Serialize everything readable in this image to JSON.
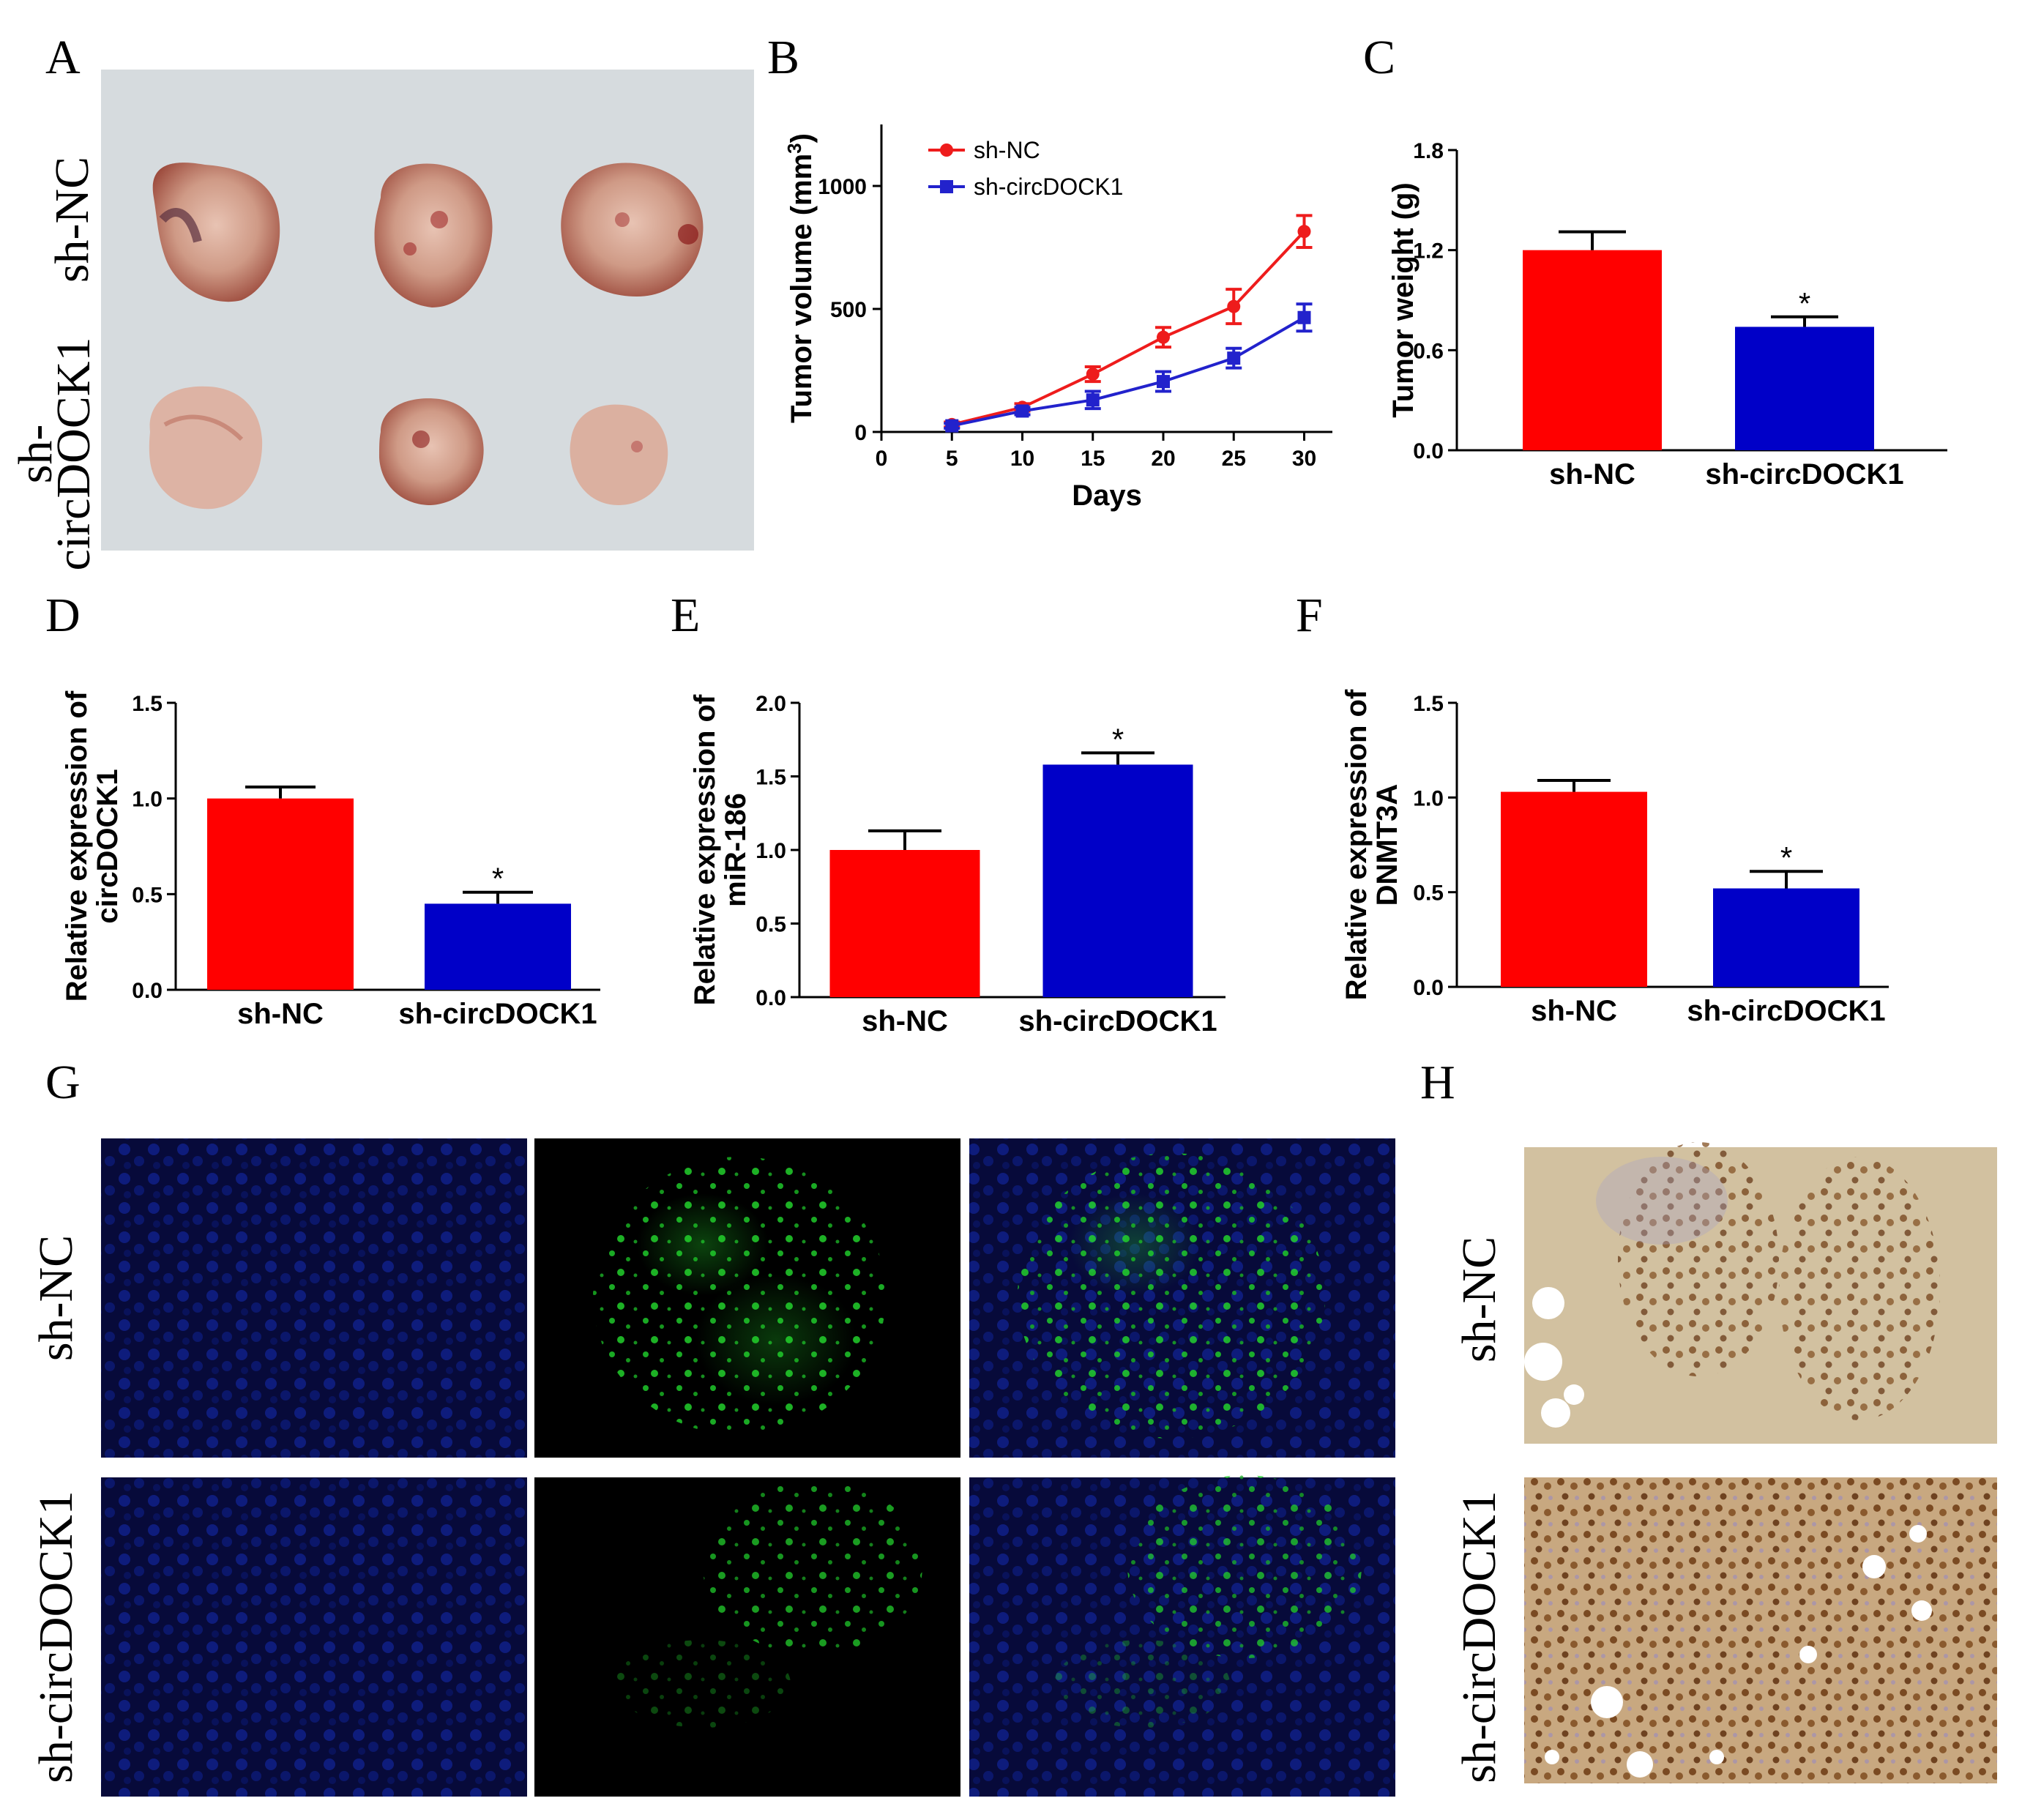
{
  "panels": {
    "A": "A",
    "B": "B",
    "C": "C",
    "D": "D",
    "E": "E",
    "F": "F",
    "G": "G",
    "H": "H"
  },
  "photo_labels": {
    "a_row1": "sh-NC",
    "a_row2_line1": "sh-",
    "a_row2_line2": "circDOCK1",
    "g_row1": "sh-NC",
    "g_row2": "sh-circDOCK1",
    "h_row1": "sh-NC",
    "h_row2": "sh-circDOCK1"
  },
  "colors": {
    "red": "#ff0000",
    "blue": "#0000c8",
    "line_red": "#ee1c1c",
    "line_blue": "#2222cc",
    "photo_bg": "#cfd5d8",
    "tumor": "#c99a8c",
    "fluor_blue": "#0c1a6e",
    "fluor_green": "#1fd62a",
    "ihc_bg": "#d8c7a8",
    "ihc_brown": "#8a5a2e"
  },
  "significance_mark": "*",
  "chart_data": [
    {
      "id": "B",
      "type": "line",
      "title": "",
      "xlabel": "Days",
      "ylabel": "Tumor volume (mm",
      "ylabel_sup": "3",
      "ylabel_close": ")",
      "x_ticks": [
        0,
        5,
        10,
        15,
        20,
        25,
        30
      ],
      "y_ticks": [
        0,
        500,
        1000
      ],
      "xlim": [
        0,
        32
      ],
      "ylim": [
        0,
        1250
      ],
      "x": [
        5,
        10,
        15,
        20,
        25,
        30
      ],
      "series": [
        {
          "name": "sh-NC",
          "color": "#ee1c1c",
          "marker": "circle",
          "values": [
            30,
            100,
            235,
            385,
            510,
            815
          ],
          "errors": [
            10,
            15,
            30,
            40,
            70,
            65
          ]
        },
        {
          "name": "sh-circDOCK1",
          "color": "#2222cc",
          "marker": "square",
          "values": [
            25,
            85,
            130,
            205,
            300,
            465
          ],
          "errors": [
            10,
            15,
            35,
            40,
            40,
            55
          ]
        }
      ]
    },
    {
      "id": "C",
      "type": "bar",
      "ylabel": "Tumor weight (g)",
      "categories": [
        "sh-NC",
        "sh-circDOCK1"
      ],
      "y_ticks": [
        "0.0",
        "0.6",
        "1.2",
        "1.8"
      ],
      "ylim": [
        0,
        1.8
      ],
      "values": [
        1.2,
        0.74
      ],
      "errors": [
        0.11,
        0.06
      ],
      "significant": [
        false,
        true
      ]
    },
    {
      "id": "D",
      "type": "bar",
      "ylabel": "Relative expression of",
      "ylabel2": "circDOCK1",
      "categories": [
        "sh-NC",
        "sh-circDOCK1"
      ],
      "y_ticks": [
        "0.0",
        "0.5",
        "1.0",
        "1.5"
      ],
      "ylim": [
        0,
        1.5
      ],
      "values": [
        1.0,
        0.45
      ],
      "errors": [
        0.06,
        0.06
      ],
      "significant": [
        false,
        true
      ]
    },
    {
      "id": "E",
      "type": "bar",
      "ylabel": "Relative expression of",
      "ylabel2": "miR-186",
      "categories": [
        "sh-NC",
        "sh-circDOCK1"
      ],
      "y_ticks": [
        "0.0",
        "0.5",
        "1.0",
        "1.5",
        "2.0"
      ],
      "ylim": [
        0,
        2.0
      ],
      "values": [
        1.0,
        1.58
      ],
      "errors": [
        0.13,
        0.08
      ],
      "significant": [
        false,
        true
      ]
    },
    {
      "id": "F",
      "type": "bar",
      "ylabel": "Relative expression of",
      "ylabel2": "DNMT3A",
      "categories": [
        "sh-NC",
        "sh-circDOCK1"
      ],
      "y_ticks": [
        "0.0",
        "0.5",
        "1.0",
        "1.5"
      ],
      "ylim": [
        0,
        1.5
      ],
      "values": [
        1.03,
        0.52
      ],
      "errors": [
        0.06,
        0.09
      ],
      "significant": [
        false,
        true
      ]
    }
  ]
}
